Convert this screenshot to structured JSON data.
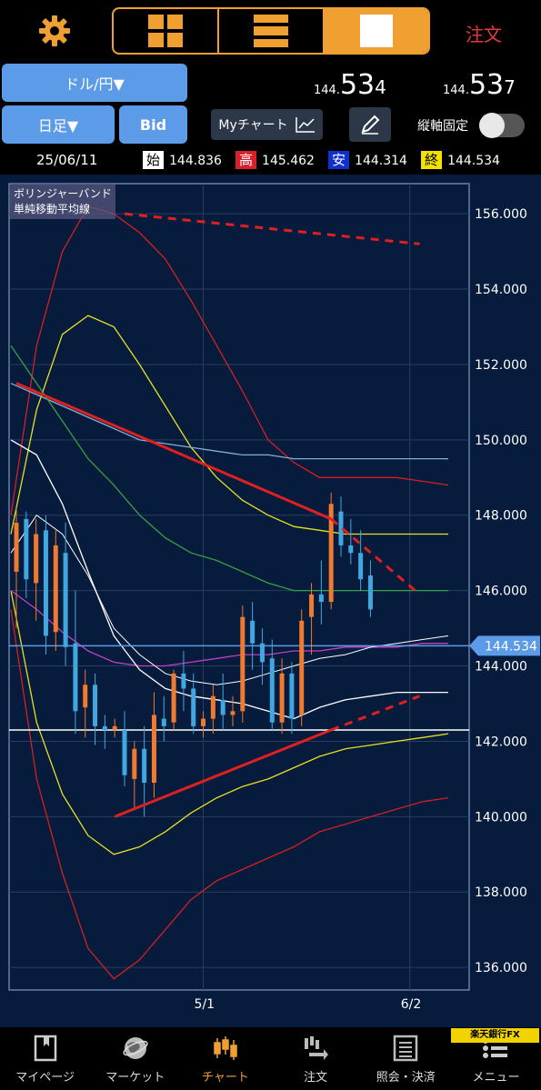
{
  "header": {
    "order_label": "注文"
  },
  "pair": {
    "currency_label": "ドル/円▼",
    "bid_price_prefix": "144.",
    "bid_price_big": "53",
    "bid_price_last": "4",
    "ask_price_prefix": "144.",
    "ask_price_big": "53",
    "ask_price_last": "7"
  },
  "controls": {
    "period_label": "日足▼",
    "bidask_label": "Bid",
    "mychart_label": "Myチャート",
    "axis_lock_label": "縦軸固定"
  },
  "ohlc": {
    "date": "25/06/11",
    "open_tag": "始",
    "open": "144.836",
    "high_tag": "高",
    "high": "145.462",
    "low_tag": "安",
    "low": "144.314",
    "close_tag": "終",
    "close": "144.534"
  },
  "legend": {
    "line1": "ボリンジャーバンド",
    "line2": "単純移動平均線"
  },
  "chart_data": {
    "type": "candlestick",
    "current_price": 144.534,
    "current_price_label": "144.534",
    "ylim": [
      135.4,
      156.8
    ],
    "y_ticks": [
      "156.000",
      "154.000",
      "152.000",
      "150.000",
      "148.000",
      "146.000",
      "144.000",
      "142.000",
      "140.000",
      "138.000",
      "136.000"
    ],
    "x_ticks": [
      {
        "label": "5/1",
        "index": 19
      },
      {
        "label": "6/2",
        "index": 40
      }
    ],
    "candles": [
      {
        "o": 146.5,
        "h": 148.2,
        "l": 145.0,
        "c": 147.8
      },
      {
        "o": 147.9,
        "h": 148.1,
        "l": 145.8,
        "c": 146.3
      },
      {
        "o": 146.2,
        "h": 147.9,
        "l": 145.2,
        "c": 147.5
      },
      {
        "o": 147.6,
        "h": 148.0,
        "l": 144.3,
        "c": 144.8
      },
      {
        "o": 144.9,
        "h": 147.6,
        "l": 144.4,
        "c": 147.2
      },
      {
        "o": 147.0,
        "h": 147.8,
        "l": 144.0,
        "c": 144.5
      },
      {
        "o": 144.6,
        "h": 146.0,
        "l": 142.2,
        "c": 142.8
      },
      {
        "o": 142.9,
        "h": 143.9,
        "l": 142.1,
        "c": 143.5
      },
      {
        "o": 143.5,
        "h": 143.8,
        "l": 141.9,
        "c": 142.4
      },
      {
        "o": 142.4,
        "h": 142.7,
        "l": 141.8,
        "c": 142.3
      },
      {
        "o": 142.3,
        "h": 142.6,
        "l": 142.1,
        "c": 142.4
      },
      {
        "o": 142.3,
        "h": 142.8,
        "l": 140.8,
        "c": 141.1
      },
      {
        "o": 141.0,
        "h": 142.0,
        "l": 140.2,
        "c": 141.8
      },
      {
        "o": 141.8,
        "h": 142.4,
        "l": 140.0,
        "c": 140.9
      },
      {
        "o": 140.9,
        "h": 143.3,
        "l": 140.5,
        "c": 142.7
      },
      {
        "o": 142.6,
        "h": 143.2,
        "l": 142.0,
        "c": 142.4
      },
      {
        "o": 142.5,
        "h": 143.9,
        "l": 142.3,
        "c": 143.8
      },
      {
        "o": 143.8,
        "h": 144.4,
        "l": 142.8,
        "c": 143.4
      },
      {
        "o": 143.4,
        "h": 143.8,
        "l": 142.2,
        "c": 142.4
      },
      {
        "o": 142.4,
        "h": 142.8,
        "l": 142.1,
        "c": 142.6
      },
      {
        "o": 142.6,
        "h": 143.5,
        "l": 142.2,
        "c": 143.2
      },
      {
        "o": 143.1,
        "h": 143.8,
        "l": 142.3,
        "c": 142.7
      },
      {
        "o": 142.7,
        "h": 143.2,
        "l": 142.4,
        "c": 142.8
      },
      {
        "o": 142.8,
        "h": 145.6,
        "l": 142.5,
        "c": 145.3
      },
      {
        "o": 145.2,
        "h": 145.7,
        "l": 143.9,
        "c": 144.6
      },
      {
        "o": 144.6,
        "h": 145.0,
        "l": 143.5,
        "c": 144.1
      },
      {
        "o": 144.2,
        "h": 144.7,
        "l": 142.3,
        "c": 142.5
      },
      {
        "o": 142.5,
        "h": 144.2,
        "l": 142.2,
        "c": 143.8
      },
      {
        "o": 143.8,
        "h": 144.1,
        "l": 142.2,
        "c": 142.6
      },
      {
        "o": 142.7,
        "h": 145.5,
        "l": 142.4,
        "c": 145.2
      },
      {
        "o": 145.3,
        "h": 146.2,
        "l": 144.3,
        "c": 145.9
      },
      {
        "o": 145.9,
        "h": 146.8,
        "l": 145.1,
        "c": 145.7
      },
      {
        "o": 145.7,
        "h": 148.6,
        "l": 145.5,
        "c": 148.3
      },
      {
        "o": 148.1,
        "h": 148.5,
        "l": 146.9,
        "c": 147.2
      },
      {
        "o": 147.2,
        "h": 147.9,
        "l": 146.7,
        "c": 147.0
      },
      {
        "o": 147.0,
        "h": 147.6,
        "l": 146.0,
        "c": 146.3
      },
      {
        "o": 146.4,
        "h": 146.8,
        "l": 145.3,
        "c": 145.5
      }
    ],
    "bollinger": {
      "upper2": [
        148.0,
        152.5,
        155.0,
        156.2,
        156.0,
        155.5,
        154.8,
        153.7,
        152.5,
        151.3,
        150.0,
        149.4,
        149.0,
        149.0,
        149.0,
        149.0,
        148.9,
        148.8
      ],
      "upper1": [
        147.5,
        150.8,
        152.8,
        153.3,
        153.0,
        152.0,
        150.9,
        149.8,
        149.0,
        148.4,
        148.0,
        147.7,
        147.6,
        147.5,
        147.5,
        147.5,
        147.5,
        147.5
      ],
      "middle": [
        147.0,
        148.0,
        147.5,
        146.4,
        145.0,
        144.3,
        143.8,
        143.6,
        143.5,
        143.6,
        143.8,
        144.0,
        144.2,
        144.3,
        144.5,
        144.6,
        144.7,
        144.8
      ],
      "lower1": [
        146.0,
        142.5,
        140.6,
        139.5,
        139.0,
        139.2,
        139.6,
        140.1,
        140.5,
        140.8,
        141.0,
        141.3,
        141.6,
        141.8,
        141.9,
        142.0,
        142.1,
        142.2
      ],
      "lower2": [
        145.5,
        141.0,
        138.5,
        136.5,
        135.7,
        136.2,
        137.0,
        137.8,
        138.3,
        138.6,
        138.9,
        139.2,
        139.6,
        139.8,
        140.0,
        140.2,
        140.4,
        140.5
      ]
    },
    "sma": {
      "fast_white": [
        150.0,
        149.6,
        148.3,
        146.5,
        144.8,
        143.9,
        143.4,
        143.2,
        143.1,
        143.0,
        142.8,
        142.6,
        142.9,
        143.1,
        143.2,
        143.3,
        143.3,
        143.3
      ],
      "mid_green": [
        152.5,
        151.5,
        150.5,
        149.5,
        148.8,
        148.0,
        147.4,
        147.0,
        146.8,
        146.5,
        146.2,
        146.0,
        146.0,
        146.0,
        146.0,
        146.0,
        146.0,
        146.0
      ],
      "slow_blue": [
        151.5,
        151.2,
        150.9,
        150.6,
        150.3,
        150.0,
        149.9,
        149.8,
        149.7,
        149.6,
        149.6,
        149.5,
        149.5,
        149.5,
        149.5,
        149.5,
        149.5,
        149.5
      ],
      "magenta": [
        146.0,
        145.5,
        144.9,
        144.4,
        144.1,
        144.0,
        144.0,
        144.1,
        144.2,
        144.3,
        144.3,
        144.4,
        144.4,
        144.5,
        144.5,
        144.5,
        144.6,
        144.6
      ]
    },
    "trendlines": [
      {
        "from": [
          0,
          151.5
        ],
        "to": [
          32,
          147.9
        ],
        "style": "solid",
        "color": "#e02020"
      },
      {
        "from": [
          32,
          147.9
        ],
        "to": [
          41,
          145.9
        ],
        "style": "dashed",
        "color": "#e02020"
      },
      {
        "from": [
          10,
          140.0
        ],
        "to": [
          32,
          142.3
        ],
        "style": "solid",
        "color": "#e02020"
      },
      {
        "from": [
          32,
          142.3
        ],
        "to": [
          41,
          143.2
        ],
        "style": "dashed",
        "color": "#e02020"
      },
      {
        "from": [
          11,
          156.0
        ],
        "to": [
          41,
          155.2
        ],
        "style": "dashed",
        "color": "#e02020"
      }
    ],
    "hlines": [
      {
        "y": 142.3,
        "color": "#ffffff"
      },
      {
        "y": 144.534,
        "color": "#5b9be8"
      }
    ]
  },
  "nav": {
    "items": [
      {
        "label": "マイページ",
        "icon": "bookmark-page-icon"
      },
      {
        "label": "マーケット",
        "icon": "globe-icon"
      },
      {
        "label": "チャート",
        "icon": "candlestick-icon"
      },
      {
        "label": "注文",
        "icon": "order-icon"
      },
      {
        "label": "照会・決済",
        "icon": "list-document-icon"
      },
      {
        "label": "メニュー",
        "icon": "menu-icon"
      }
    ],
    "brand": "楽天銀行FX"
  }
}
